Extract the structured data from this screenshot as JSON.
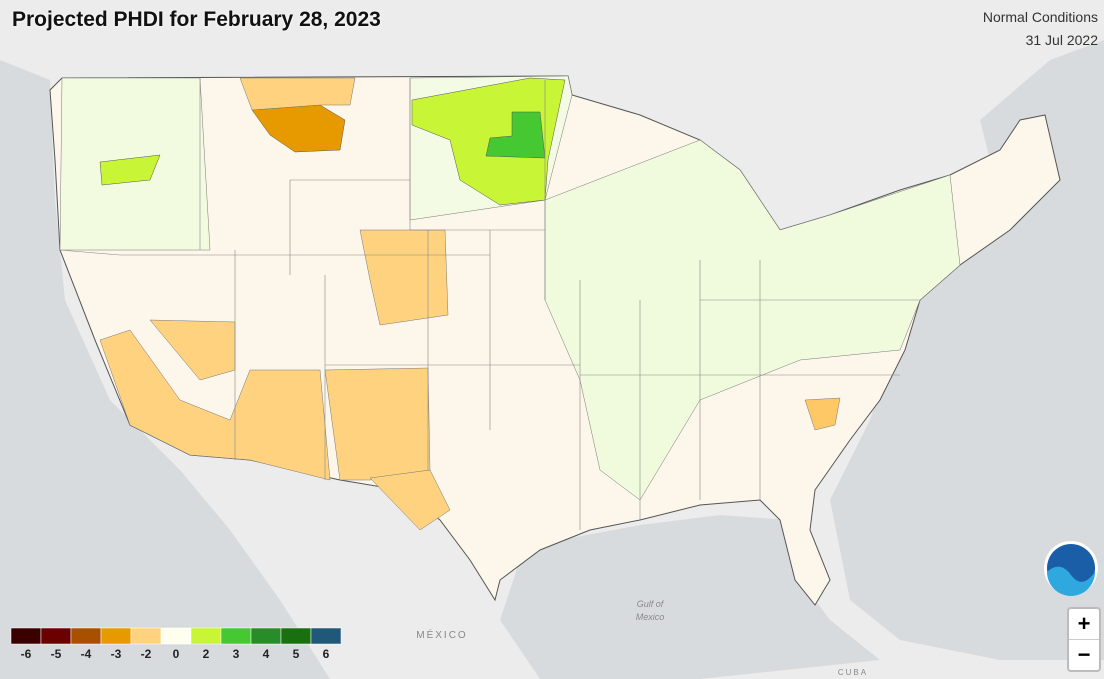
{
  "header": {
    "title": "Projected PHDI for February 28, 2023",
    "condition": "Normal Conditions",
    "date": "31 Jul 2022"
  },
  "legend": {
    "items": [
      {
        "label": -6,
        "color": "#3a0000"
      },
      {
        "label": -5,
        "color": "#6b0000"
      },
      {
        "label": -4,
        "color": "#a85000"
      },
      {
        "label": -3,
        "color": "#e69a00"
      },
      {
        "label": -2,
        "color": "#ffd27f"
      },
      {
        "label": 0,
        "color": "#fffff0"
      },
      {
        "label": 2,
        "color": "#c8f535"
      },
      {
        "label": 3,
        "color": "#46c832"
      },
      {
        "label": 4,
        "color": "#288c28"
      },
      {
        "label": 5,
        "color": "#1a7010"
      },
      {
        "label": 6,
        "color": "#1f5878"
      }
    ]
  },
  "map_labels": {
    "mexico": "MÉXICO",
    "gulf_1": "Gulf of",
    "gulf_2": "Mexico",
    "cuba": "CUBA"
  },
  "controls": {
    "zoom_in": "+",
    "zoom_out": "−"
  }
}
